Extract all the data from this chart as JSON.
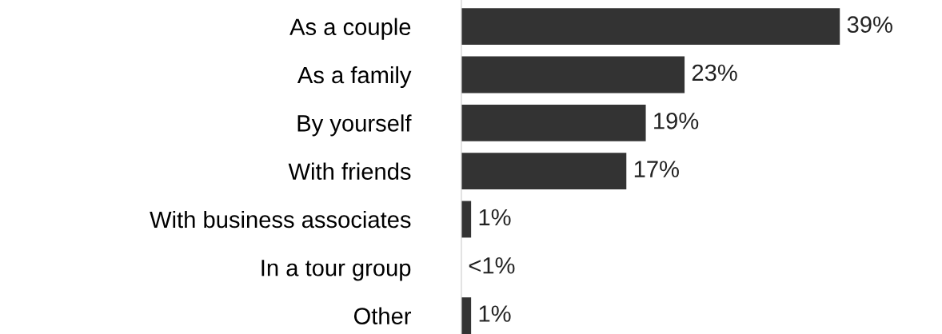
{
  "chart_data": {
    "type": "bar",
    "orientation": "horizontal",
    "categories": [
      "As a couple",
      "As a family",
      "By yourself",
      "With friends",
      "With business associates",
      "In a tour group",
      "Other"
    ],
    "values": [
      39,
      23,
      19,
      17,
      1,
      0,
      1
    ],
    "value_labels": [
      "39%",
      "23%",
      "19%",
      "17%",
      "1%",
      "<1%",
      "1%"
    ],
    "color": "#333333",
    "grid": false,
    "legend": false,
    "tick_labels": "y"
  }
}
